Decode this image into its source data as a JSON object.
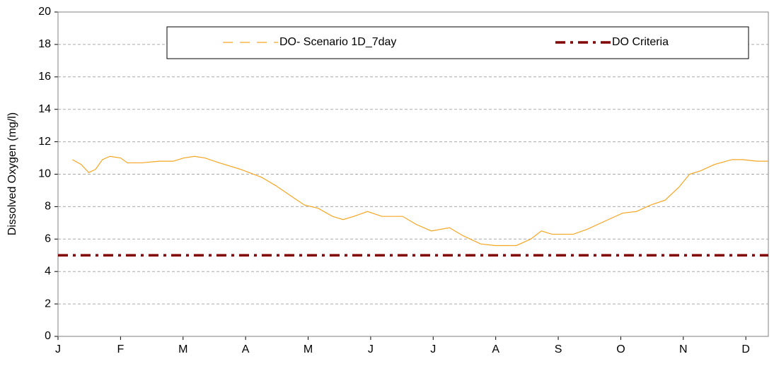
{
  "chart_data": {
    "type": "line",
    "ylabel": "Dissolved Oxygen (mg/l)",
    "xlim": [
      0,
      11.36
    ],
    "xticks": [
      {
        "value": 0,
        "label": "J"
      },
      {
        "value": 1,
        "label": "F"
      },
      {
        "value": 2,
        "label": "M"
      },
      {
        "value": 3,
        "label": "A"
      },
      {
        "value": 4,
        "label": "M"
      },
      {
        "value": 5,
        "label": "J"
      },
      {
        "value": 6,
        "label": "J"
      },
      {
        "value": 7,
        "label": "A"
      },
      {
        "value": 8,
        "label": "S"
      },
      {
        "value": 9,
        "label": "O"
      },
      {
        "value": 10,
        "label": "N"
      },
      {
        "value": 11,
        "label": "D"
      }
    ],
    "ylim": [
      0,
      20
    ],
    "yticks": [
      0,
      2,
      4,
      6,
      8,
      10,
      12,
      14,
      16,
      18,
      20
    ],
    "grid": true,
    "legend": "top",
    "series": [
      {
        "name": "DO- Scenario 1D_7day",
        "color": "#f5a623",
        "dash": "solid",
        "x": [
          0.23,
          0.37,
          0.49,
          0.6,
          0.71,
          0.83,
          1.0,
          1.11,
          1.33,
          1.62,
          1.84,
          2.01,
          2.18,
          2.35,
          2.58,
          2.92,
          3.26,
          3.48,
          3.71,
          3.94,
          4.16,
          4.39,
          4.56,
          4.73,
          4.95,
          5.18,
          5.51,
          5.73,
          5.97,
          6.26,
          6.48,
          6.76,
          6.99,
          7.33,
          7.56,
          7.73,
          7.9,
          8.24,
          8.46,
          8.8,
          9.03,
          9.25,
          9.48,
          9.71,
          9.93,
          10.1,
          10.27,
          10.5,
          10.78,
          10.95,
          11.18,
          11.36
        ],
        "values": [
          10.9,
          10.6,
          10.1,
          10.3,
          10.9,
          11.1,
          11.0,
          10.7,
          10.7,
          10.8,
          10.8,
          11.0,
          11.1,
          11.0,
          10.7,
          10.3,
          9.8,
          9.3,
          8.7,
          8.1,
          7.9,
          7.4,
          7.2,
          7.4,
          7.7,
          7.4,
          7.4,
          6.9,
          6.5,
          6.7,
          6.2,
          5.7,
          5.6,
          5.6,
          6.0,
          6.5,
          6.3,
          6.3,
          6.6,
          7.2,
          7.6,
          7.7,
          8.1,
          8.4,
          9.2,
          10.0,
          10.2,
          10.6,
          10.9,
          10.9,
          10.8,
          10.8
        ]
      },
      {
        "name": "DO Criteria",
        "color": "#800000",
        "dash": "dashdot",
        "x": [
          0,
          11.36
        ],
        "values": [
          5,
          5
        ]
      }
    ]
  }
}
